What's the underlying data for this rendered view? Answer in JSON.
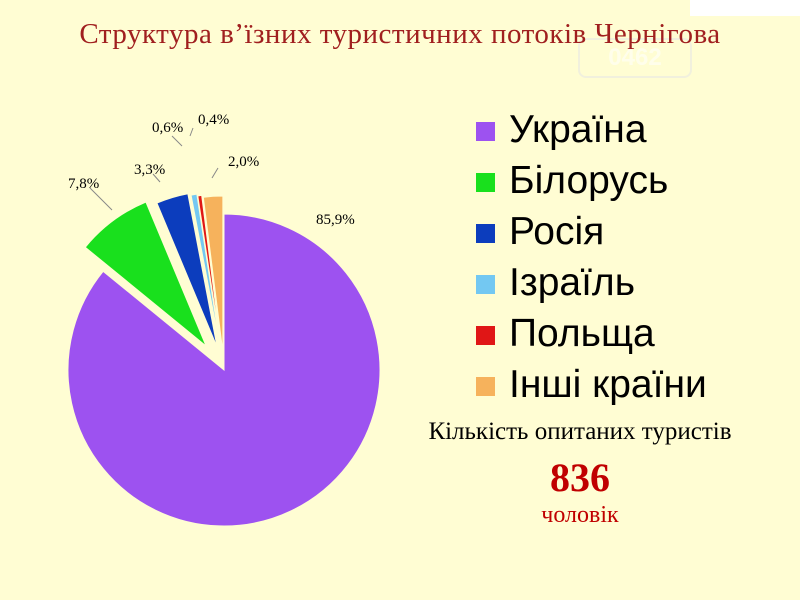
{
  "title": "Структура в’їзних туристичних потоків Чернігова",
  "watermark": "0462",
  "chart_data": {
    "type": "pie",
    "title": "Структура в’їзних туристичних потоків Чернігова",
    "slices": [
      {
        "label": "Україна",
        "value": 85.9,
        "value_label": "85,9%",
        "color": "#9d52f0"
      },
      {
        "label": "Білорусь",
        "value": 7.8,
        "value_label": "7,8%",
        "color": "#19e01d"
      },
      {
        "label": "Росія",
        "value": 3.3,
        "value_label": "3,3%",
        "color": "#0c3dbd"
      },
      {
        "label": "Ізраїль",
        "value": 0.6,
        "value_label": "0,6%",
        "color": "#73c8f2"
      },
      {
        "label": "Польща",
        "value": 0.4,
        "value_label": "0,4%",
        "color": "#e01616"
      },
      {
        "label": "Інші країни",
        "value": 2.0,
        "value_label": "2,0%",
        "color": "#f6b25c"
      }
    ],
    "legend_position": "right"
  },
  "survey": {
    "title": "Кількість опитаних туристів",
    "count": "836",
    "unit": "чоловік"
  }
}
